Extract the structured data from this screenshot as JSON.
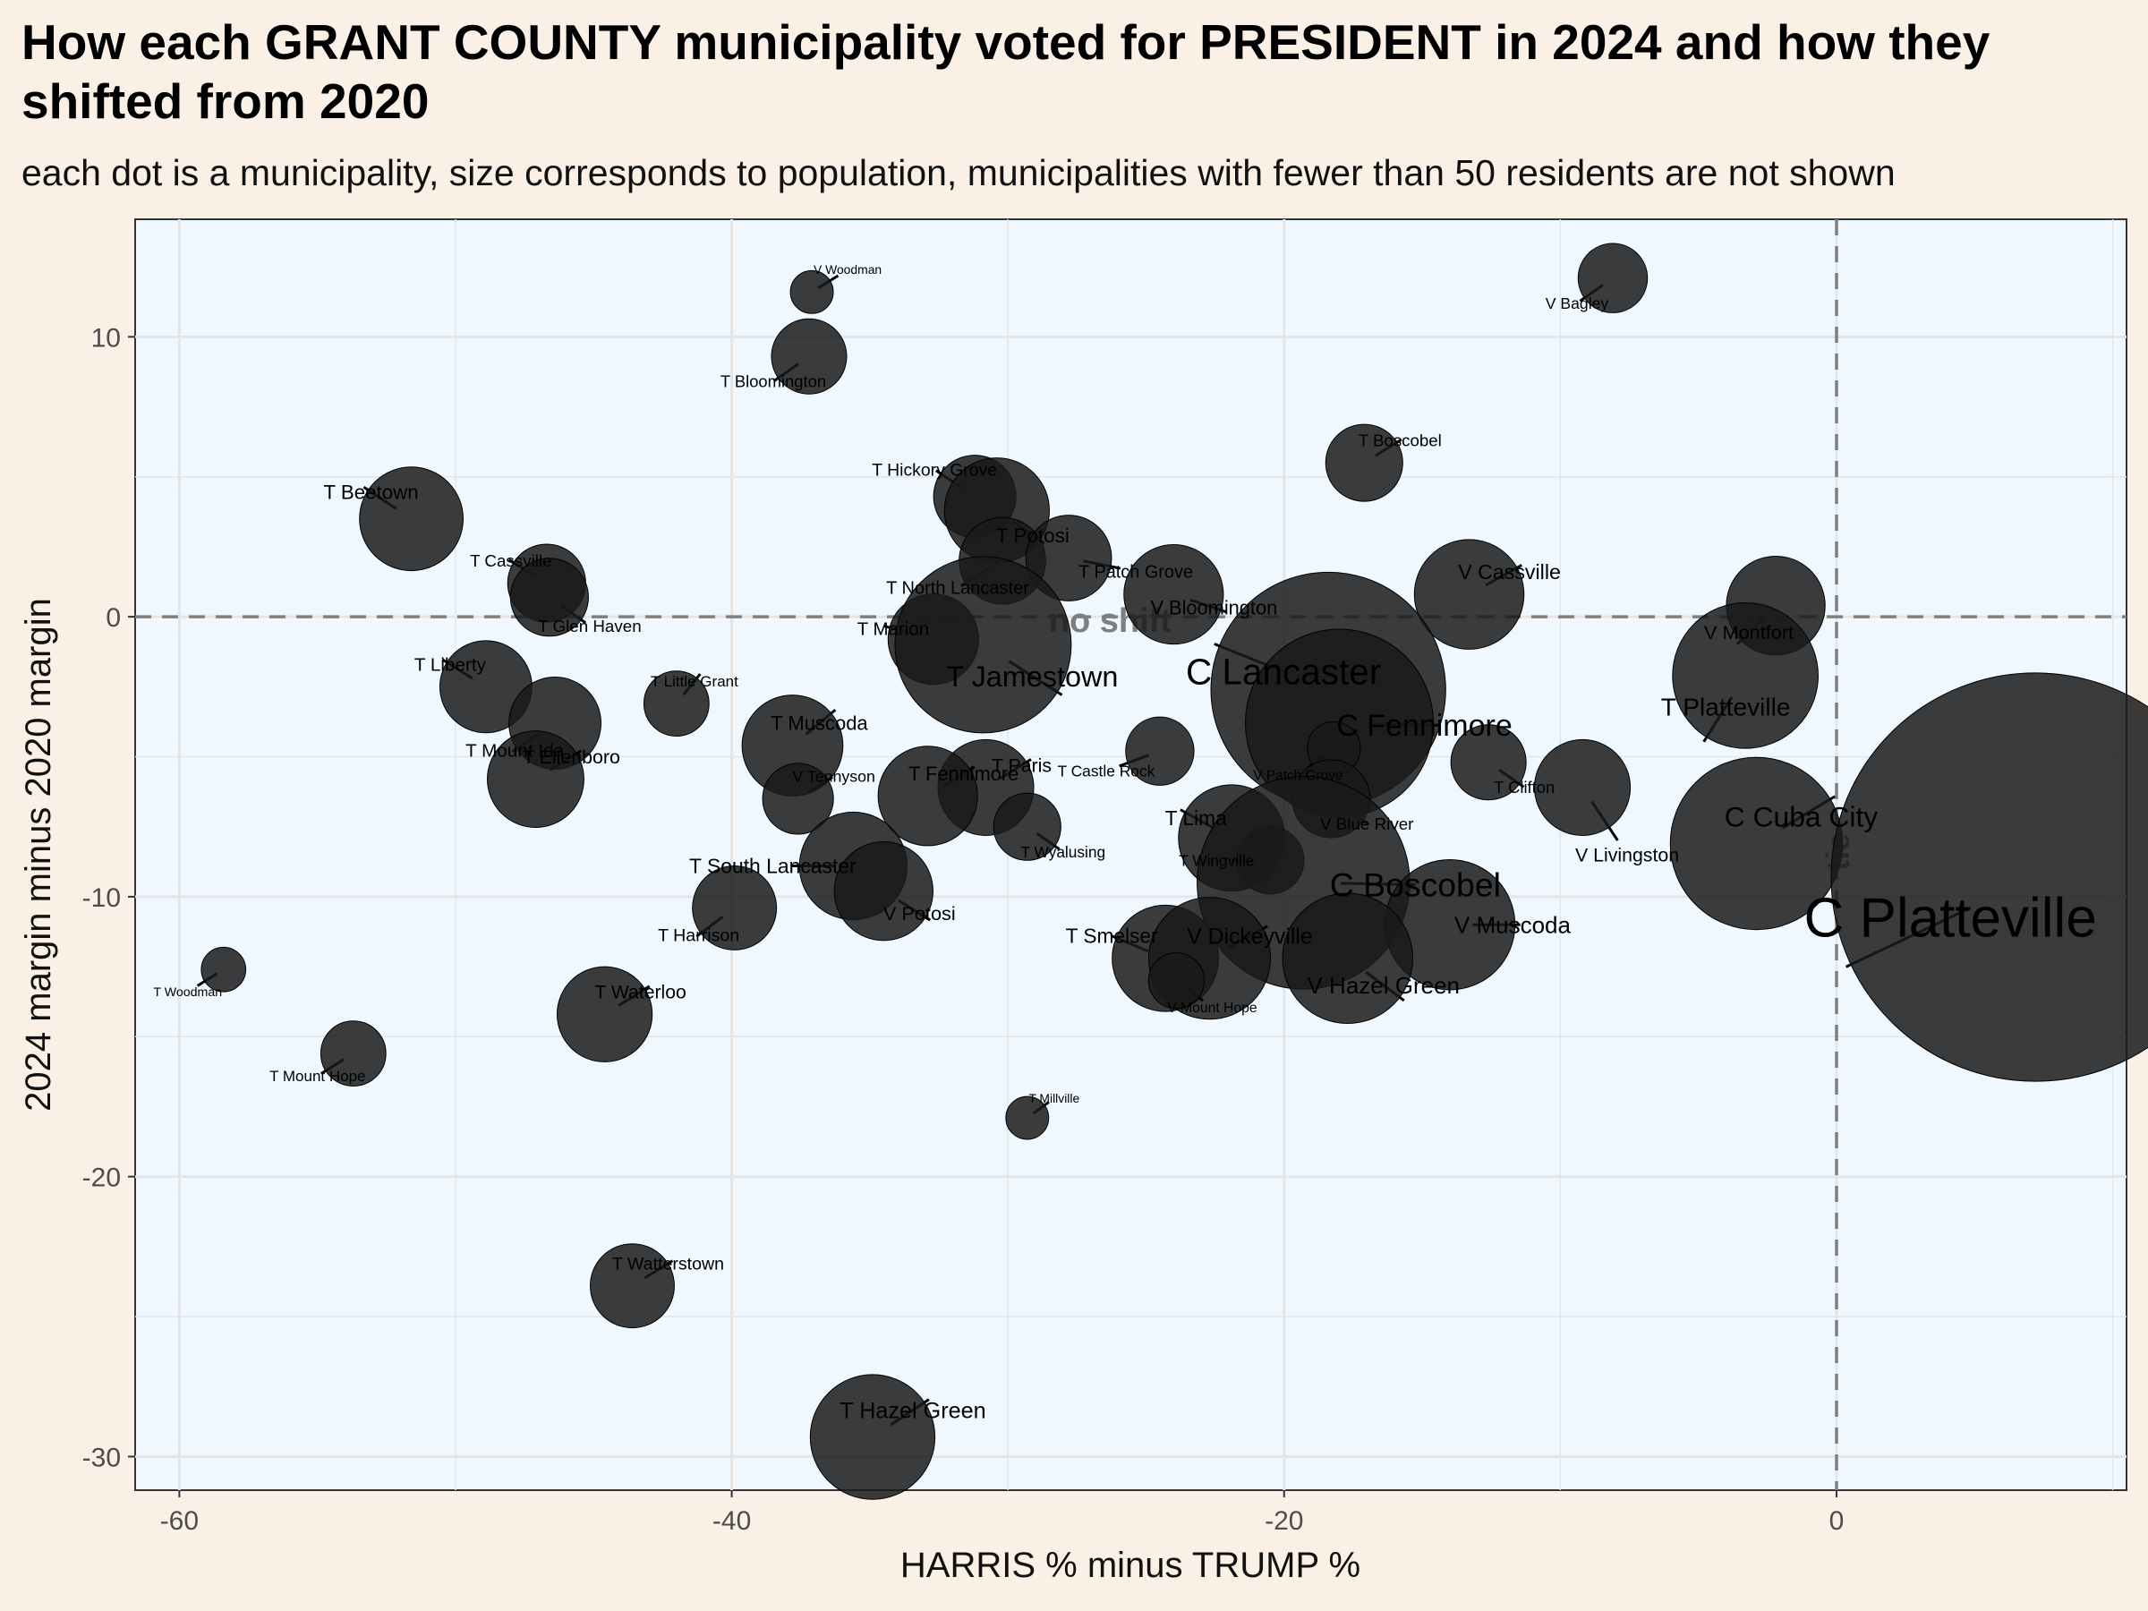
{
  "title": "How each GRANT COUNTY municipality voted for PRESIDENT in 2024 and how they shifted from 2020",
  "subtitle": "each dot is a municipality, size corresponds to population, municipalities with fewer than 50 residents are not shown",
  "colors": {
    "page_background": "#faf0e6",
    "panel_background": "#f0f8ff",
    "grid": "#e5e5e5",
    "dot": "#1a1a1a",
    "reference_line": "#7f7f7f"
  },
  "chart_data": {
    "type": "scatter",
    "xlabel": "HARRIS % minus TRUMP %",
    "ylabel": "2024 margin minus 2020 margin",
    "xlim": [
      -61.6,
      10.5
    ],
    "ylim": [
      -31.2,
      14.2
    ],
    "x_ticks": [
      -60,
      -40,
      -20,
      0
    ],
    "y_ticks": [
      -30,
      -20,
      -10,
      0,
      10
    ],
    "x_tick_labels": [
      "-60",
      "-40",
      "-20",
      "0"
    ],
    "y_tick_labels": [
      "-30",
      "-20",
      "-10",
      "0",
      "10"
    ],
    "grid": true,
    "reference_lines": [
      {
        "axis": "y",
        "value": 0,
        "label": "no shift"
      },
      {
        "axis": "x",
        "value": 0,
        "label": "tie"
      }
    ],
    "points": [
      {
        "name": "V Woodman",
        "x": -37.1,
        "y": 11.6,
        "pop": 130
      },
      {
        "name": "V Bagley",
        "x": -8.1,
        "y": 12.1,
        "pop": 340
      },
      {
        "name": "T Bloomington",
        "x": -37.2,
        "y": 9.3,
        "pop": 400
      },
      {
        "name": "T Boscobel",
        "x": -17.1,
        "y": 5.5,
        "pop": 420
      },
      {
        "name": "T Beetown",
        "x": -51.6,
        "y": 3.5,
        "pop": 760
      },
      {
        "name": "T Hickory Grove",
        "x": -31.2,
        "y": 4.3,
        "pop": 480
      },
      {
        "name": "T Potosi",
        "x": -30.4,
        "y": 3.8,
        "pop": 780
      },
      {
        "name": "T North Lancaster",
        "x": -30.2,
        "y": 2.0,
        "pop": 530
      },
      {
        "name": "T Patch Grove",
        "x": -27.8,
        "y": 2.1,
        "pop": 520
      },
      {
        "name": "T Cassville",
        "x": -46.7,
        "y": 1.2,
        "pop": 430
      },
      {
        "name": "T Glen Haven",
        "x": -46.6,
        "y": 0.7,
        "pop": 430
      },
      {
        "name": "V Bloomington",
        "x": -24.0,
        "y": 0.8,
        "pop": 700
      },
      {
        "name": "V Cassville",
        "x": -13.3,
        "y": 0.8,
        "pop": 850
      },
      {
        "name": "V Montfort",
        "x": -2.2,
        "y": 0.4,
        "pop": 690
      },
      {
        "name": "T Marion",
        "x": -32.7,
        "y": -0.8,
        "pop": 580
      },
      {
        "name": "T Jamestown",
        "x": -30.9,
        "y": -1.0,
        "pop": 2200
      },
      {
        "name": "C Lancaster",
        "x": -18.4,
        "y": -2.6,
        "pop": 3900
      },
      {
        "name": "T Platteville",
        "x": -3.3,
        "y": -2.1,
        "pop": 1500
      },
      {
        "name": "T Liberty",
        "x": -48.9,
        "y": -2.5,
        "pop": 600
      },
      {
        "name": "T Little Grant",
        "x": -42.0,
        "y": -3.1,
        "pop": 300
      },
      {
        "name": "C Fennimore",
        "x": -18.0,
        "y": -3.8,
        "pop": 2500
      },
      {
        "name": "T Mount Ida",
        "x": -46.4,
        "y": -3.8,
        "pop": 600
      },
      {
        "name": "T Muscoda",
        "x": -37.8,
        "y": -4.6,
        "pop": 720
      },
      {
        "name": "T Castle Rock",
        "x": -24.5,
        "y": -4.8,
        "pop": 330
      },
      {
        "name": "V Patch Grove",
        "x": -18.2,
        "y": -4.7,
        "pop": 200
      },
      {
        "name": "T Clifton",
        "x": -12.6,
        "y": -5.2,
        "pop": 400
      },
      {
        "name": "T Ellenboro",
        "x": -47.1,
        "y": -5.8,
        "pop": 660
      },
      {
        "name": "V Tennyson",
        "x": -37.6,
        "y": -6.5,
        "pop": 355
      },
      {
        "name": "T Paris",
        "x": -30.8,
        "y": -6.1,
        "pop": 650
      },
      {
        "name": "T Fennimore",
        "x": -32.9,
        "y": -6.4,
        "pop": 700
      },
      {
        "name": "V Livingston",
        "x": -9.2,
        "y": -6.1,
        "pop": 650
      },
      {
        "name": "V Blue River",
        "x": -18.3,
        "y": -6.5,
        "pop": 430
      },
      {
        "name": "C Cuba City",
        "x": -2.9,
        "y": -8.1,
        "pop": 2100
      },
      {
        "name": "T Wyalusing",
        "x": -29.3,
        "y": -7.5,
        "pop": 320
      },
      {
        "name": "T Lima",
        "x": -21.9,
        "y": -7.9,
        "pop": 800
      },
      {
        "name": "T Wingville",
        "x": -20.5,
        "y": -8.7,
        "pop": 320
      },
      {
        "name": "T South Lancaster",
        "x": -35.6,
        "y": -8.9,
        "pop": 820
      },
      {
        "name": "C Boscobel",
        "x": -19.3,
        "y": -9.5,
        "pop": 3200
      },
      {
        "name": "C Platteville",
        "x": 7.2,
        "y": -9.3,
        "pop": 11800
      },
      {
        "name": "V Potosi",
        "x": -34.5,
        "y": -9.8,
        "pop": 690
      },
      {
        "name": "T Harrison",
        "x": -39.9,
        "y": -10.4,
        "pop": 500
      },
      {
        "name": "V Muscoda",
        "x": -14.0,
        "y": -11.0,
        "pop": 1200
      },
      {
        "name": "T Smelser",
        "x": -24.3,
        "y": -12.2,
        "pop": 800
      },
      {
        "name": "V Dickeyville",
        "x": -22.7,
        "y": -12.2,
        "pop": 1050
      },
      {
        "name": "V Hazel Green",
        "x": -17.7,
        "y": -12.2,
        "pop": 1200
      },
      {
        "name": "V Mount Hope",
        "x": -23.9,
        "y": -13.0,
        "pop": 220
      },
      {
        "name": "T Woodman",
        "x": -58.4,
        "y": -12.6,
        "pop": 140
      },
      {
        "name": "T Waterloo",
        "x": -44.6,
        "y": -14.2,
        "pop": 640
      },
      {
        "name": "T Mount Hope",
        "x": -53.7,
        "y": -15.6,
        "pop": 300
      },
      {
        "name": "T Millville",
        "x": -29.3,
        "y": -17.9,
        "pop": 130
      },
      {
        "name": "T Watterstown",
        "x": -43.6,
        "y": -23.9,
        "pop": 500
      },
      {
        "name": "T Hazel Green",
        "x": -34.9,
        "y": -29.3,
        "pop": 1100
      }
    ]
  }
}
